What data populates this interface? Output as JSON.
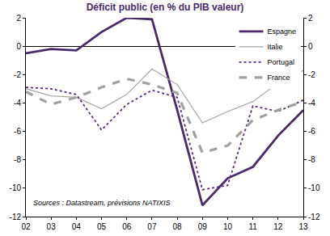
{
  "chart_data": {
    "type": "line",
    "title": "Déficit public (en % du PIB valeur)",
    "annotations": [
      "Sources : Datastream, prévisions NATIXIS"
    ],
    "categories": [
      "02",
      "03",
      "04",
      "05",
      "06",
      "07",
      "08",
      "09",
      "10",
      "11",
      "12",
      "13"
    ],
    "series": [
      {
        "name": "Espagne",
        "color": "#4b2a6b",
        "line_style": "solid",
        "values": [
          -0.5,
          -0.2,
          -0.3,
          1.0,
          2.0,
          1.9,
          -4.5,
          -11.2,
          -9.3,
          -8.5,
          -6.3,
          -4.5
        ]
      },
      {
        "name": "Italie",
        "color": "#a6a6a6",
        "line_style": "solid",
        "values": [
          -3.0,
          -3.5,
          -3.6,
          -4.4,
          -3.4,
          -1.6,
          -2.7,
          -5.4,
          -4.6,
          -3.9,
          -2.6,
          -1.7
        ]
      },
      {
        "name": "Portugal",
        "color": "#5a2a82",
        "line_style": "dot",
        "values": [
          -2.9,
          -3.0,
          -3.4,
          -5.9,
          -4.1,
          -3.1,
          -3.6,
          -10.1,
          -9.8,
          -4.2,
          -4.6,
          -3.8
        ]
      },
      {
        "name": "France",
        "color": "#a0a0a0",
        "line_style": "dash",
        "values": [
          -3.2,
          -4.1,
          -3.6,
          -2.9,
          -2.3,
          -2.7,
          -3.3,
          -7.5,
          -7.0,
          -5.2,
          -4.5,
          -3.9
        ]
      }
    ],
    "ylim": [
      -12,
      2
    ],
    "yticks": [
      -12,
      -10,
      -8,
      -6,
      -4,
      -2,
      0,
      2
    ],
    "y2lim": [
      -12,
      2
    ],
    "y2ticks": [
      -12,
      -10,
      -8,
      -6,
      -4,
      -2,
      0,
      2
    ],
    "grid": false,
    "legend": "top right"
  }
}
